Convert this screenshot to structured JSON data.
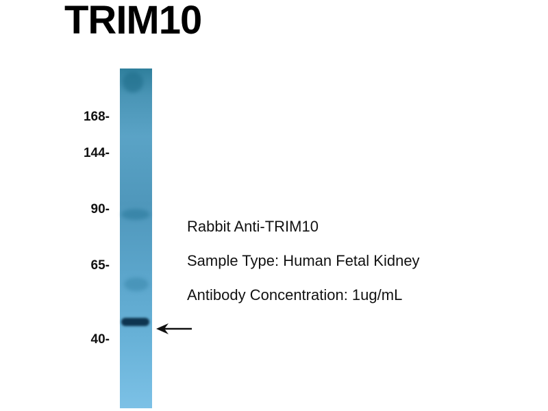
{
  "title": "TRIM10",
  "markers": [
    {
      "label": "168-",
      "kda": 168
    },
    {
      "label": "144-",
      "kda": 144
    },
    {
      "label": "90-",
      "kda": 90
    },
    {
      "label": "65-",
      "kda": 65
    },
    {
      "label": "40-",
      "kda": 40
    }
  ],
  "band_arrow": "arrow-left-icon",
  "info": {
    "antibody": "Rabbit Anti-TRIM10",
    "sample": "Sample Type: Human Fetal Kidney",
    "concentration": "Antibody Concentration: 1ug/mL"
  },
  "colors": {
    "lane": "#5aa3c6",
    "band": "#0e3550"
  }
}
